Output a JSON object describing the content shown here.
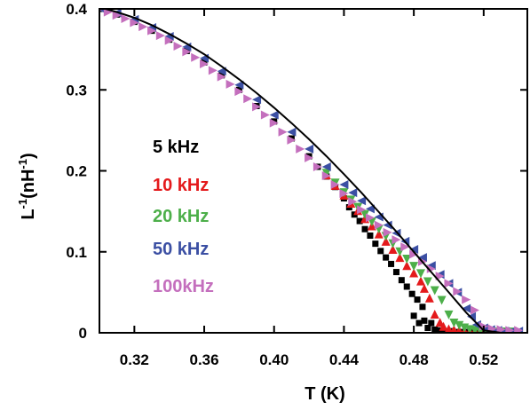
{
  "chart_data": {
    "type": "scatter",
    "xlabel": "T (K)",
    "ylabel_main": "L",
    "ylabel_sup1": "-1",
    "ylabel_mid": "(nH",
    "ylabel_sup2": "-1",
    "ylabel_end": ")",
    "xlim": [
      0.3,
      0.545
    ],
    "ylim": [
      0,
      0.4
    ],
    "xticks": [
      "0.32",
      "0.36",
      "0.40",
      "0.44",
      "0.48",
      "0.52"
    ],
    "xtick_values": [
      0.32,
      0.36,
      0.4,
      0.44,
      0.48,
      0.52
    ],
    "yticks": [
      "0",
      "0.1",
      "0.2",
      "0.3",
      "0.4"
    ],
    "ytick_values": [
      0,
      0.1,
      0.2,
      0.3,
      0.4
    ],
    "grid": false,
    "legend_position": "left-center",
    "series": [
      {
        "name": "5 kHz",
        "color": "#000000",
        "marker": "square",
        "points": [
          [
            0.3,
            0.4
          ],
          [
            0.31,
            0.393
          ],
          [
            0.32,
            0.384
          ],
          [
            0.33,
            0.373
          ],
          [
            0.34,
            0.362
          ],
          [
            0.35,
            0.348
          ],
          [
            0.36,
            0.334
          ],
          [
            0.37,
            0.318
          ],
          [
            0.38,
            0.3
          ],
          [
            0.39,
            0.28
          ],
          [
            0.4,
            0.261
          ],
          [
            0.41,
            0.24
          ],
          [
            0.42,
            0.218
          ],
          [
            0.425,
            0.205
          ],
          [
            0.43,
            0.193
          ],
          [
            0.435,
            0.18
          ],
          [
            0.44,
            0.166
          ],
          [
            0.443,
            0.155
          ],
          [
            0.446,
            0.146
          ],
          [
            0.449,
            0.138
          ],
          [
            0.452,
            0.128
          ],
          [
            0.455,
            0.12
          ],
          [
            0.458,
            0.11
          ],
          [
            0.461,
            0.101
          ],
          [
            0.464,
            0.093
          ],
          [
            0.467,
            0.085
          ],
          [
            0.47,
            0.075
          ],
          [
            0.473,
            0.065
          ],
          [
            0.476,
            0.057
          ],
          [
            0.479,
            0.048
          ],
          [
            0.482,
            0.041
          ],
          [
            0.485,
            0.032
          ],
          [
            0.48,
            0.021
          ],
          [
            0.483,
            0.012
          ],
          [
            0.486,
            0.015
          ],
          [
            0.488,
            0.006
          ],
          [
            0.49,
            0.012
          ],
          [
            0.492,
            0.004
          ],
          [
            0.495,
            0.003
          ],
          [
            0.498,
            0.002
          ],
          [
            0.501,
            0.002
          ],
          [
            0.504,
            0.001
          ],
          [
            0.507,
            0.001
          ],
          [
            0.51,
            0.001
          ],
          [
            0.513,
            0.001
          ],
          [
            0.516,
            0.001
          ],
          [
            0.519,
            0.001
          ],
          [
            0.522,
            0.001
          ],
          [
            0.525,
            0.001
          ],
          [
            0.528,
            0.001
          ],
          [
            0.531,
            0.001
          ],
          [
            0.534,
            0.001
          ],
          [
            0.537,
            0.001
          ],
          [
            0.54,
            0.001
          ]
        ]
      },
      {
        "name": "10 kHz",
        "color": "#e41a1c",
        "marker": "triangle-up",
        "points": [
          [
            0.43,
            0.195
          ],
          [
            0.435,
            0.182
          ],
          [
            0.44,
            0.17
          ],
          [
            0.444,
            0.16
          ],
          [
            0.448,
            0.151
          ],
          [
            0.452,
            0.141
          ],
          [
            0.456,
            0.132
          ],
          [
            0.46,
            0.122
          ],
          [
            0.464,
            0.113
          ],
          [
            0.468,
            0.103
          ],
          [
            0.472,
            0.093
          ],
          [
            0.476,
            0.083
          ],
          [
            0.48,
            0.074
          ],
          [
            0.484,
            0.064
          ],
          [
            0.486,
            0.055
          ],
          [
            0.489,
            0.043
          ],
          [
            0.492,
            0.023
          ],
          [
            0.495,
            0.013
          ],
          [
            0.497,
            0.008
          ],
          [
            0.5,
            0.005
          ],
          [
            0.503,
            0.004
          ],
          [
            0.506,
            0.003
          ],
          [
            0.509,
            0.002
          ],
          [
            0.512,
            0.002
          ],
          [
            0.515,
            0.002
          ],
          [
            0.518,
            0.002
          ],
          [
            0.521,
            0.001
          ],
          [
            0.524,
            0.001
          ],
          [
            0.527,
            0.001
          ],
          [
            0.53,
            0.001
          ],
          [
            0.533,
            0.001
          ],
          [
            0.536,
            0.001
          ]
        ]
      },
      {
        "name": "20 kHz",
        "color": "#4daf4a",
        "marker": "triangle-down",
        "points": [
          [
            0.43,
            0.197
          ],
          [
            0.435,
            0.185
          ],
          [
            0.44,
            0.173
          ],
          [
            0.444,
            0.164
          ],
          [
            0.448,
            0.155
          ],
          [
            0.452,
            0.146
          ],
          [
            0.456,
            0.137
          ],
          [
            0.46,
            0.128
          ],
          [
            0.464,
            0.119
          ],
          [
            0.468,
            0.11
          ],
          [
            0.472,
            0.1
          ],
          [
            0.476,
            0.091
          ],
          [
            0.48,
            0.082
          ],
          [
            0.484,
            0.073
          ],
          [
            0.488,
            0.063
          ],
          [
            0.492,
            0.052
          ],
          [
            0.496,
            0.04
          ],
          [
            0.5,
            0.022
          ],
          [
            0.503,
            0.012
          ],
          [
            0.506,
            0.009
          ],
          [
            0.509,
            0.006
          ],
          [
            0.512,
            0.004
          ],
          [
            0.515,
            0.003
          ],
          [
            0.518,
            0.002
          ],
          [
            0.521,
            0.002
          ],
          [
            0.524,
            0.001
          ],
          [
            0.527,
            0.001
          ],
          [
            0.53,
            0.001
          ],
          [
            0.533,
            0.001
          ],
          [
            0.536,
            0.001
          ]
        ]
      },
      {
        "name": "50 kHz",
        "color": "#3b4fa3",
        "marker": "triangle-left",
        "points": [
          [
            0.3,
            0.401
          ],
          [
            0.31,
            0.395
          ],
          [
            0.32,
            0.387
          ],
          [
            0.33,
            0.377
          ],
          [
            0.34,
            0.366
          ],
          [
            0.35,
            0.353
          ],
          [
            0.36,
            0.339
          ],
          [
            0.37,
            0.323
          ],
          [
            0.38,
            0.306
          ],
          [
            0.39,
            0.288
          ],
          [
            0.4,
            0.269
          ],
          [
            0.41,
            0.248
          ],
          [
            0.42,
            0.227
          ],
          [
            0.43,
            0.205
          ],
          [
            0.44,
            0.183
          ],
          [
            0.445,
            0.173
          ],
          [
            0.45,
            0.163
          ],
          [
            0.455,
            0.153
          ],
          [
            0.46,
            0.143
          ],
          [
            0.465,
            0.133
          ],
          [
            0.47,
            0.123
          ],
          [
            0.475,
            0.113
          ],
          [
            0.48,
            0.103
          ],
          [
            0.485,
            0.093
          ],
          [
            0.49,
            0.083
          ],
          [
            0.495,
            0.072
          ],
          [
            0.5,
            0.061
          ],
          [
            0.505,
            0.05
          ],
          [
            0.51,
            0.03
          ],
          [
            0.513,
            0.02
          ],
          [
            0.516,
            0.01
          ],
          [
            0.52,
            0.006
          ],
          [
            0.524,
            0.004
          ],
          [
            0.528,
            0.003
          ],
          [
            0.532,
            0.002
          ],
          [
            0.536,
            0.002
          ],
          [
            0.54,
            0.002
          ]
        ]
      },
      {
        "name": "100kHz",
        "color": "#c46fbd",
        "marker": "triangle-right",
        "points": [
          [
            0.3,
            0.4
          ],
          [
            0.305,
            0.396
          ],
          [
            0.31,
            0.392
          ],
          [
            0.315,
            0.388
          ],
          [
            0.32,
            0.383
          ],
          [
            0.325,
            0.378
          ],
          [
            0.33,
            0.373
          ],
          [
            0.335,
            0.367
          ],
          [
            0.34,
            0.361
          ],
          [
            0.345,
            0.354
          ],
          [
            0.35,
            0.347
          ],
          [
            0.355,
            0.34
          ],
          [
            0.36,
            0.332
          ],
          [
            0.365,
            0.324
          ],
          [
            0.37,
            0.316
          ],
          [
            0.375,
            0.307
          ],
          [
            0.38,
            0.298
          ],
          [
            0.385,
            0.289
          ],
          [
            0.39,
            0.279
          ],
          [
            0.395,
            0.269
          ],
          [
            0.4,
            0.259
          ],
          [
            0.405,
            0.248
          ],
          [
            0.41,
            0.238
          ],
          [
            0.415,
            0.227
          ],
          [
            0.42,
            0.216
          ],
          [
            0.425,
            0.205
          ],
          [
            0.43,
            0.194
          ],
          [
            0.435,
            0.183
          ],
          [
            0.44,
            0.172
          ],
          [
            0.445,
            0.162
          ],
          [
            0.45,
            0.152
          ],
          [
            0.455,
            0.142
          ],
          [
            0.46,
            0.133
          ],
          [
            0.465,
            0.124
          ],
          [
            0.47,
            0.115
          ],
          [
            0.475,
            0.106
          ],
          [
            0.48,
            0.097
          ],
          [
            0.485,
            0.088
          ],
          [
            0.49,
            0.079
          ],
          [
            0.495,
            0.07
          ],
          [
            0.5,
            0.061
          ],
          [
            0.505,
            0.051
          ],
          [
            0.51,
            0.041
          ],
          [
            0.515,
            0.028
          ],
          [
            0.52,
            0.008
          ],
          [
            0.525,
            0.005
          ],
          [
            0.53,
            0.004
          ],
          [
            0.535,
            0.003
          ],
          [
            0.54,
            0.003
          ]
        ]
      },
      {
        "name": "",
        "color": "#000000",
        "marker": "line",
        "points": [
          [
            0.3,
            0.402
          ],
          [
            0.31,
            0.396
          ],
          [
            0.32,
            0.389
          ],
          [
            0.33,
            0.38
          ],
          [
            0.34,
            0.369
          ],
          [
            0.35,
            0.357
          ],
          [
            0.36,
            0.344
          ],
          [
            0.37,
            0.329
          ],
          [
            0.38,
            0.313
          ],
          [
            0.39,
            0.296
          ],
          [
            0.4,
            0.278
          ],
          [
            0.41,
            0.259
          ],
          [
            0.42,
            0.239
          ],
          [
            0.43,
            0.218
          ],
          [
            0.44,
            0.196
          ],
          [
            0.45,
            0.173
          ],
          [
            0.46,
            0.149
          ],
          [
            0.47,
            0.125
          ],
          [
            0.48,
            0.1
          ],
          [
            0.49,
            0.075
          ],
          [
            0.5,
            0.05
          ],
          [
            0.51,
            0.025
          ],
          [
            0.52,
            0.003
          ],
          [
            0.53,
            0.0
          ],
          [
            0.54,
            0.0
          ]
        ]
      }
    ]
  }
}
